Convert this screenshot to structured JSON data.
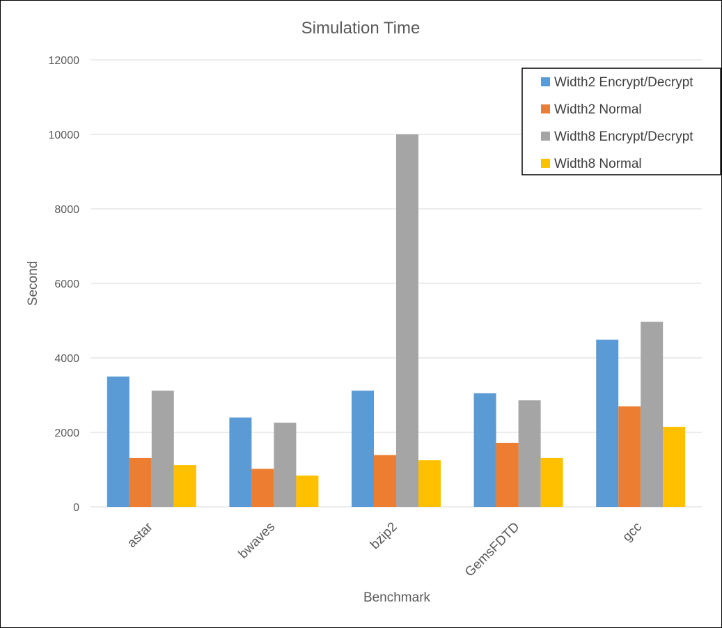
{
  "chart_data": {
    "type": "bar",
    "title": "Simulation Time",
    "xlabel": "Benchmark",
    "ylabel": "Second",
    "ylim": [
      0,
      12000
    ],
    "yticks": [
      0,
      2000,
      4000,
      6000,
      8000,
      10000,
      12000
    ],
    "categories": [
      "astar",
      "bwaves",
      "bzip2",
      "GemsFDTD",
      "gcc"
    ],
    "series": [
      {
        "name": "Width2 Encrypt/Decrypt",
        "color": "#5b9bd5",
        "values": [
          3500,
          2400,
          3120,
          3050,
          4490
        ]
      },
      {
        "name": "Width2 Normal",
        "color": "#ed7d31",
        "values": [
          1310,
          1020,
          1390,
          1720,
          2700
        ]
      },
      {
        "name": "Width8 Encrypt/Decrypt",
        "color": "#a5a5a5",
        "values": [
          3120,
          2260,
          10000,
          2860,
          4970
        ]
      },
      {
        "name": "Width8 Normal",
        "color": "#ffc000",
        "values": [
          1120,
          840,
          1250,
          1310,
          2150
        ]
      }
    ],
    "grid": true,
    "legend_position": "top-right"
  }
}
